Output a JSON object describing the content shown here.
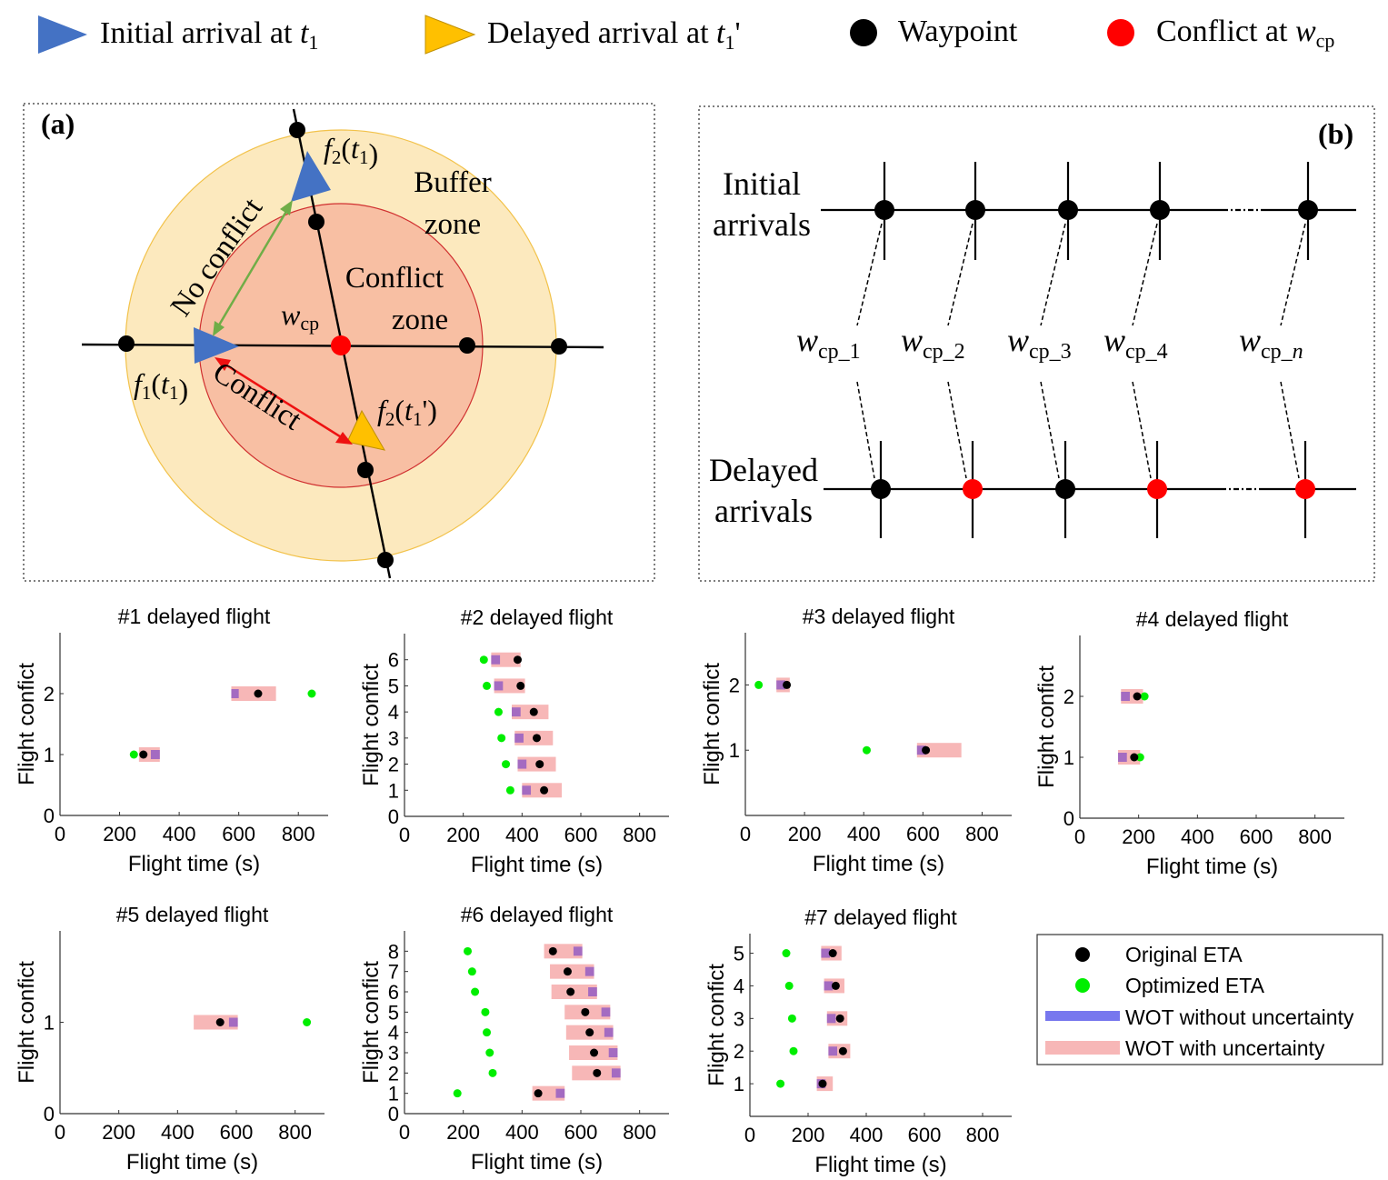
{
  "legend_top": {
    "initial": {
      "text": "Initial arrival at ",
      "var": "t",
      "sub": "1",
      "prime": ""
    },
    "delayed": {
      "text": "Delayed arrival at ",
      "var": "t",
      "sub": "1",
      "prime": "'"
    },
    "waypoint": "Waypoint",
    "conflict": {
      "text": "Conflict at ",
      "var": "w",
      "sub": "cp"
    }
  },
  "colors": {
    "initial": "#4472C4",
    "delayed": "#FFC000",
    "conflict_point": "#FF0000",
    "buffer_zone": "#FCE9BE",
    "conflict_zone": "#F8BFA3",
    "optimized": "#00EE00",
    "wot_without": "#7777EE",
    "wot_with": "#F7B7B7",
    "wot_overlap": "#A46BC1"
  },
  "panel_a": {
    "tag": "(a)",
    "buffer_zone": [
      "Buffer",
      "zone"
    ],
    "conflict_zone": [
      "Conflict",
      "zone"
    ],
    "no_conflict": "No conflict",
    "conflict": "Conflict",
    "wcp": {
      "var": "w",
      "sub": "cp"
    },
    "f2_t1": {
      "f": "f",
      "fsub": "2",
      "t": "t",
      "tsub": "1",
      "prime": ""
    },
    "f1_t1": {
      "f": "f",
      "fsub": "1",
      "t": "t",
      "tsub": "1",
      "prime": ""
    },
    "f2_t1p": {
      "f": "f",
      "fsub": "2",
      "t": "t",
      "tsub": "1",
      "prime": "'"
    }
  },
  "panel_b": {
    "tag": "(b)",
    "initial": [
      "Initial",
      "arrivals"
    ],
    "delayed": [
      "Delayed",
      "arrivals"
    ],
    "wcp_labels": [
      {
        "var": "w",
        "sub": "cp_1",
        "italic_tail": ""
      },
      {
        "var": "w",
        "sub": "cp_2",
        "italic_tail": ""
      },
      {
        "var": "w",
        "sub": "cp_3",
        "italic_tail": ""
      },
      {
        "var": "w",
        "sub": "cp_4",
        "italic_tail": ""
      },
      {
        "var": "w",
        "sub": "cp_",
        "italic_tail": "n"
      }
    ],
    "delayed_conflicts": [
      false,
      true,
      false,
      true,
      true
    ]
  },
  "legend_bottom": {
    "original": "Original ETA",
    "optimized": "Optimized ETA",
    "wot_without": "WOT without uncertainty",
    "wot_with": "WOT with uncertainty"
  },
  "chart_data": [
    {
      "type": "scatter",
      "title": "#1 delayed flight",
      "xlabel": "Flight time (s)",
      "ylabel": "Flight confict",
      "xlim": [
        0,
        900
      ],
      "xticks": [
        0,
        200,
        400,
        600,
        800
      ],
      "ylim": [
        0,
        3
      ],
      "yticks": [
        0,
        1,
        2
      ],
      "points": [
        {
          "y": 1,
          "original": 280,
          "optimized": 248,
          "wot_with": [
            265,
            335
          ],
          "wot_without": [
            305,
            335
          ]
        },
        {
          "y": 2,
          "original": 665,
          "optimized": 845,
          "wot_with": [
            575,
            725
          ],
          "wot_without": [
            575,
            600
          ]
        }
      ]
    },
    {
      "type": "scatter",
      "title": "#2 delayed flight",
      "xlabel": "Flight time (s)",
      "ylabel": "Flight confict",
      "xlim": [
        0,
        900
      ],
      "xticks": [
        0,
        200,
        400,
        600,
        800
      ],
      "ylim": [
        0,
        7
      ],
      "yticks": [
        0,
        1,
        2,
        3,
        4,
        5,
        6
      ],
      "points": [
        {
          "y": 1,
          "original": 475,
          "optimized": 360,
          "wot_with": [
            400,
            535
          ],
          "wot_without": [
            400,
            430
          ]
        },
        {
          "y": 2,
          "original": 460,
          "optimized": 345,
          "wot_with": [
            385,
            515
          ],
          "wot_without": [
            385,
            415
          ]
        },
        {
          "y": 3,
          "original": 450,
          "optimized": 330,
          "wot_with": [
            375,
            505
          ],
          "wot_without": [
            375,
            405
          ]
        },
        {
          "y": 4,
          "original": 440,
          "optimized": 320,
          "wot_with": [
            365,
            490
          ],
          "wot_without": [
            365,
            395
          ]
        },
        {
          "y": 5,
          "original": 395,
          "optimized": 280,
          "wot_with": [
            305,
            410
          ],
          "wot_without": [
            305,
            335
          ]
        },
        {
          "y": 6,
          "original": 385,
          "optimized": 270,
          "wot_with": [
            295,
            395
          ],
          "wot_without": [
            295,
            325
          ]
        }
      ]
    },
    {
      "type": "scatter",
      "title": "#3 delayed flight",
      "xlabel": "Flight time (s)",
      "ylabel": "Flight confict",
      "xlim": [
        0,
        900
      ],
      "xticks": [
        0,
        200,
        400,
        600,
        800
      ],
      "ylim": [
        0,
        2.8
      ],
      "yticks": [
        1,
        2
      ],
      "points": [
        {
          "y": 1,
          "original": 610,
          "optimized": 410,
          "wot_with": [
            580,
            730
          ],
          "wot_without": [
            580,
            610
          ]
        },
        {
          "y": 2,
          "original": 140,
          "optimized": 45,
          "wot_with": [
            105,
            150
          ],
          "wot_without": [
            105,
            135
          ]
        }
      ]
    },
    {
      "type": "scatter",
      "title": "#4 delayed flight",
      "xlabel": "Flight time (s)",
      "ylabel": "Flight confict",
      "xlim": [
        0,
        900
      ],
      "xticks": [
        0,
        200,
        400,
        600,
        800
      ],
      "ylim": [
        0,
        3
      ],
      "yticks": [
        0,
        1,
        2
      ],
      "points": [
        {
          "y": 1,
          "original": 185,
          "optimized": 205,
          "wot_with": [
            130,
            205
          ],
          "wot_without": [
            130,
            160
          ]
        },
        {
          "y": 2,
          "original": 195,
          "optimized": 220,
          "wot_with": [
            140,
            215
          ],
          "wot_without": [
            140,
            170
          ]
        }
      ]
    },
    {
      "type": "scatter",
      "title": "#5 delayed flight",
      "xlabel": "Flight time (s)",
      "ylabel": "Flight confict",
      "xlim": [
        0,
        900
      ],
      "xticks": [
        0,
        200,
        400,
        600,
        800
      ],
      "ylim": [
        0,
        2
      ],
      "yticks": [
        0,
        1
      ],
      "points": [
        {
          "y": 1,
          "original": 545,
          "optimized": 840,
          "wot_with": [
            455,
            605
          ],
          "wot_without": [
            575,
            605
          ]
        }
      ]
    },
    {
      "type": "scatter",
      "title": "#6 delayed flight",
      "xlabel": "Flight time (s)",
      "ylabel": "Flight confict",
      "xlim": [
        0,
        900
      ],
      "xticks": [
        0,
        200,
        400,
        600,
        800
      ],
      "ylim": [
        0,
        9
      ],
      "yticks": [
        0,
        1,
        2,
        3,
        4,
        5,
        6,
        7,
        8
      ],
      "points": [
        {
          "y": 1,
          "original": 455,
          "optimized": 180,
          "wot_with": [
            435,
            545
          ],
          "wot_without": [
            515,
            545
          ]
        },
        {
          "y": 2,
          "original": 655,
          "optimized": 300,
          "wot_with": [
            570,
            735
          ],
          "wot_without": [
            705,
            735
          ]
        },
        {
          "y": 3,
          "original": 645,
          "optimized": 290,
          "wot_with": [
            560,
            725
          ],
          "wot_without": [
            695,
            725
          ]
        },
        {
          "y": 4,
          "original": 630,
          "optimized": 280,
          "wot_with": [
            550,
            710
          ],
          "wot_without": [
            680,
            710
          ]
        },
        {
          "y": 5,
          "original": 615,
          "optimized": 275,
          "wot_with": [
            545,
            700
          ],
          "wot_without": [
            670,
            700
          ]
        },
        {
          "y": 6,
          "original": 565,
          "optimized": 240,
          "wot_with": [
            500,
            655
          ],
          "wot_without": [
            625,
            655
          ]
        },
        {
          "y": 7,
          "original": 555,
          "optimized": 230,
          "wot_with": [
            495,
            645
          ],
          "wot_without": [
            615,
            645
          ]
        },
        {
          "y": 8,
          "original": 505,
          "optimized": 215,
          "wot_with": [
            475,
            605
          ],
          "wot_without": [
            575,
            605
          ]
        }
      ]
    },
    {
      "type": "scatter",
      "title": "#7 delayed flight",
      "xlabel": "Flight time (s)",
      "ylabel": "Flight confict",
      "xlim": [
        0,
        900
      ],
      "xticks": [
        0,
        200,
        400,
        600,
        800
      ],
      "ylim": [
        0,
        5.6
      ],
      "yticks": [
        1,
        2,
        3,
        4,
        5
      ],
      "points": [
        {
          "y": 1,
          "original": 250,
          "optimized": 105,
          "wot_with": [
            230,
            285
          ],
          "wot_without": [
            230,
            260
          ]
        },
        {
          "y": 2,
          "original": 320,
          "optimized": 150,
          "wot_with": [
            270,
            345
          ],
          "wot_without": [
            270,
            300
          ]
        },
        {
          "y": 3,
          "original": 310,
          "optimized": 145,
          "wot_with": [
            265,
            335
          ],
          "wot_without": [
            265,
            295
          ]
        },
        {
          "y": 4,
          "original": 295,
          "optimized": 135,
          "wot_with": [
            255,
            325
          ],
          "wot_without": [
            255,
            285
          ]
        },
        {
          "y": 5,
          "original": 285,
          "optimized": 125,
          "wot_with": [
            245,
            315
          ],
          "wot_without": [
            245,
            275
          ]
        }
      ]
    }
  ]
}
